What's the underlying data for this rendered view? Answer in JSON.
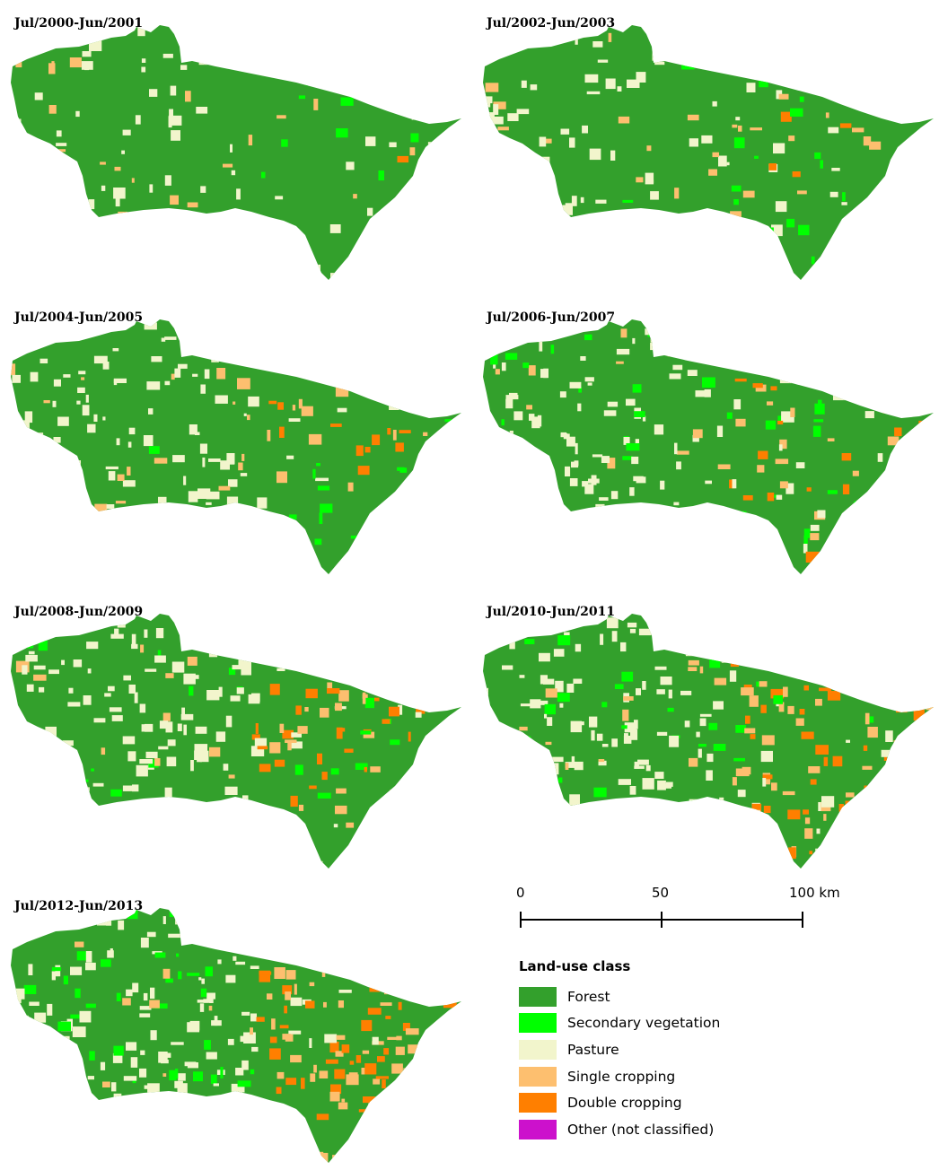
{
  "panels": [
    {
      "title": "Jul/2000-Jun/2001"
    },
    {
      "title": "Jul/2002-Jun/2003"
    },
    {
      "title": "Jul/2004-Jun/2005"
    },
    {
      "title": "Jul/2006-Jun/2007"
    },
    {
      "title": "Jul/2008-Jun/2009"
    },
    {
      "title": "Jul/2010-Jun/2011"
    },
    {
      "title": "Jul/2012-Jun/2013"
    }
  ],
  "scale_bar": {
    "labels": [
      "0",
      "50",
      "100 km"
    ]
  },
  "legend": {
    "title": "Land-use class",
    "items": [
      {
        "label": "Forest",
        "color": "#33a02c"
      },
      {
        "label": "Secondary vegetation",
        "color": "#00ff00"
      },
      {
        "label": "Pasture",
        "color": "#f2f5cc"
      },
      {
        "label": "Single cropping",
        "color": "#fdbf6f"
      },
      {
        "label": "Double cropping",
        "color": "#ff7f00"
      },
      {
        "label": "Other (not classified)",
        "color": "#cc11cc"
      }
    ]
  }
}
